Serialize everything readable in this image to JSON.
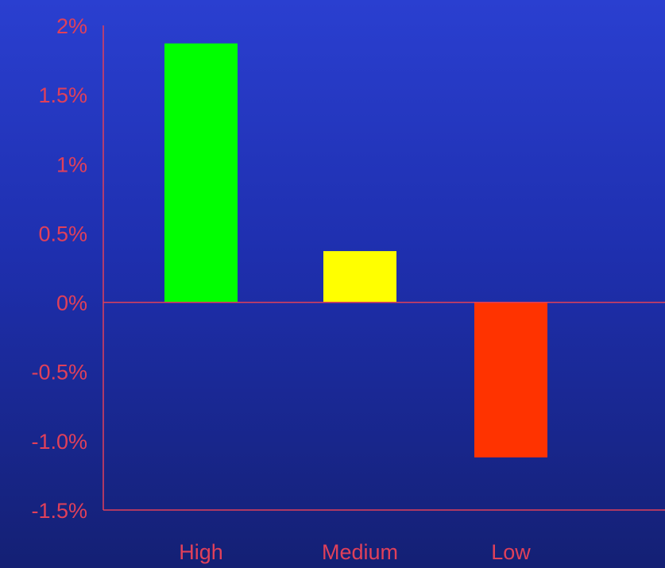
{
  "chart_data": {
    "type": "bar",
    "categories": [
      "High",
      "Medium",
      "Low"
    ],
    "values": [
      1.87,
      0.37,
      -1.12
    ],
    "bar_colors": [
      "#00ff00",
      "#ffff00",
      "#ff3300"
    ],
    "ylim": [
      -1.5,
      2
    ],
    "yticks": [
      2,
      1.5,
      1,
      0.5,
      0,
      -0.5,
      -1.0,
      -1.5
    ],
    "ytick_labels": [
      "2%",
      "1.5%",
      "1%",
      "0.5%",
      "0%",
      "-0.5%",
      "-1.0%",
      "-1.5%"
    ],
    "title": "",
    "xlabel": "",
    "ylabel": "",
    "grid": false,
    "axis_color": "#e0405a",
    "label_color": "#e0405a"
  }
}
